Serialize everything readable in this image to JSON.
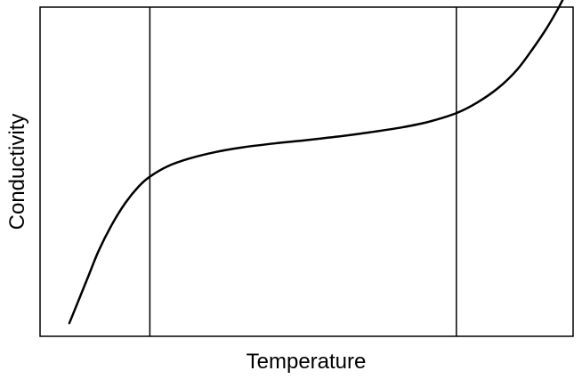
{
  "chart_data": {
    "type": "line",
    "title": "",
    "xlabel": "Temperature",
    "ylabel": "Conductivity",
    "xticks": [],
    "yticks": [],
    "grid": false,
    "legend": "none",
    "xlim": [
      0,
      100
    ],
    "ylim": [
      0,
      100
    ],
    "vertical_lines": [
      20.6,
      78.1
    ],
    "series": [
      {
        "x": [
          5.5,
          7.0,
          9.0,
          11.0,
          13.5,
          16.0,
          18.5,
          20.6,
          24.0,
          28.0,
          33.0,
          38.0,
          44.0,
          50.0,
          56.0,
          62.0,
          68.0,
          73.0,
          78.1,
          82.0,
          86.0,
          89.5,
          92.5,
          95.0,
          97.0,
          98.3
        ],
        "y": [
          4.0,
          10.0,
          18.0,
          26.0,
          34.0,
          40.5,
          45.5,
          48.5,
          51.7,
          54.0,
          56.0,
          57.4,
          58.6,
          59.6,
          60.7,
          62.0,
          63.5,
          65.2,
          67.8,
          71.0,
          75.5,
          81.0,
          87.5,
          93.5,
          99.0,
          103.0
        ],
        "color": "#000000"
      }
    ]
  }
}
